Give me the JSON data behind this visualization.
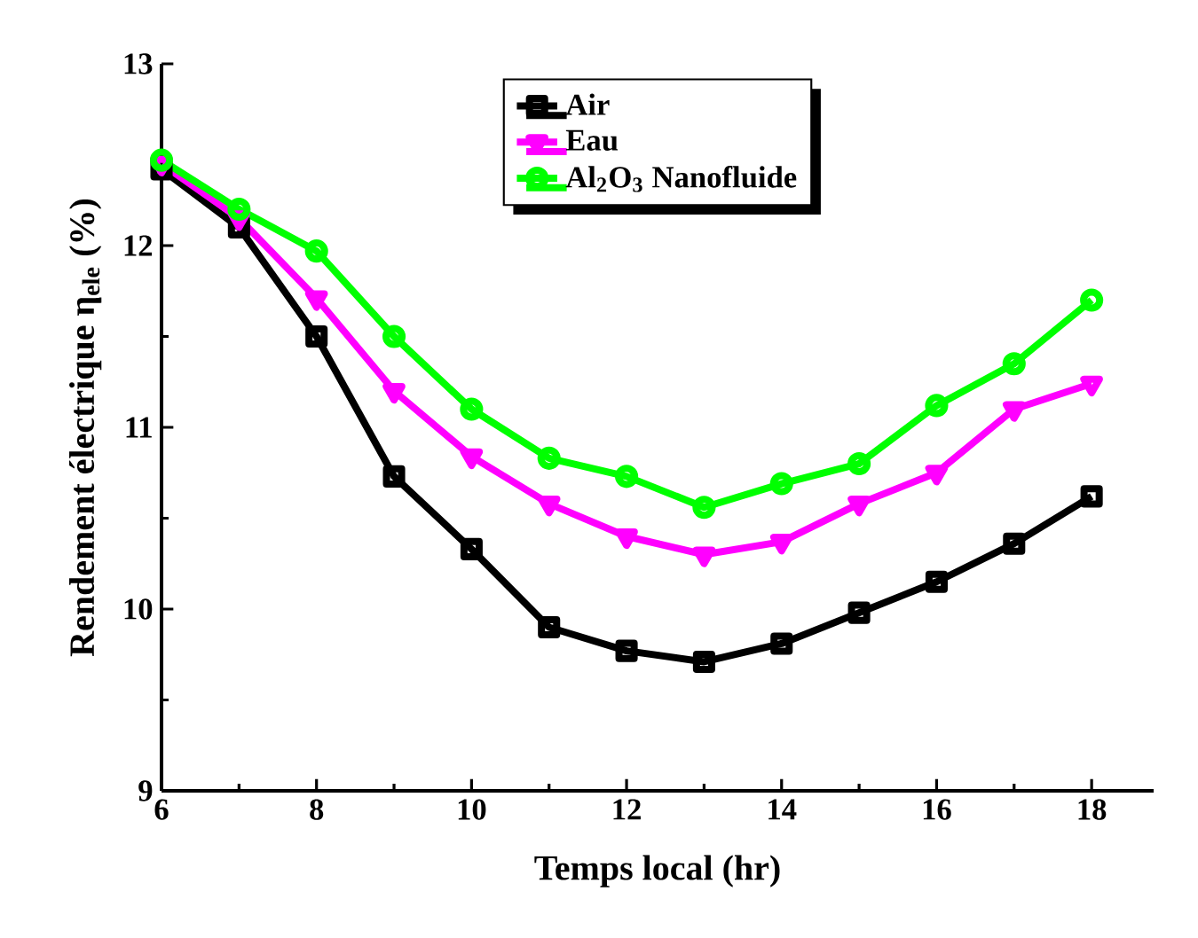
{
  "chart_data": {
    "type": "line",
    "xlabel": "Temps local  (hr)",
    "ylabel": "Rendement électrique η$_{ele}$ (%)",
    "x": [
      6,
      7,
      8,
      9,
      10,
      11,
      12,
      13,
      14,
      15,
      16,
      17,
      18
    ],
    "xlim": [
      6,
      18.8
    ],
    "xticks": [
      6,
      8,
      10,
      12,
      14,
      16,
      18
    ],
    "ylim": [
      9,
      13
    ],
    "yticks": [
      9,
      10,
      11,
      12,
      13
    ],
    "legend": "top",
    "grid": false,
    "line_style": "solid",
    "series": [
      {
        "name": "Air",
        "color": "#000000",
        "marker": "square",
        "values": [
          12.42,
          12.1,
          11.5,
          10.73,
          10.33,
          9.9,
          9.77,
          9.71,
          9.81,
          9.98,
          10.15,
          10.36,
          10.62
        ]
      },
      {
        "name": "Eau",
        "color": "#ff00ff",
        "marker": "triangle",
        "values": [
          12.45,
          12.15,
          11.71,
          11.2,
          10.84,
          10.58,
          10.4,
          10.3,
          10.37,
          10.58,
          10.75,
          11.1,
          11.24
        ]
      },
      {
        "name": "Al$_{2}$O$_{3}$ Nanofluide",
        "color": "#00ff00",
        "marker": "circle",
        "values": [
          12.47,
          12.2,
          11.97,
          11.5,
          11.1,
          10.83,
          10.73,
          10.56,
          10.69,
          10.8,
          11.12,
          11.35,
          11.7
        ]
      }
    ]
  }
}
